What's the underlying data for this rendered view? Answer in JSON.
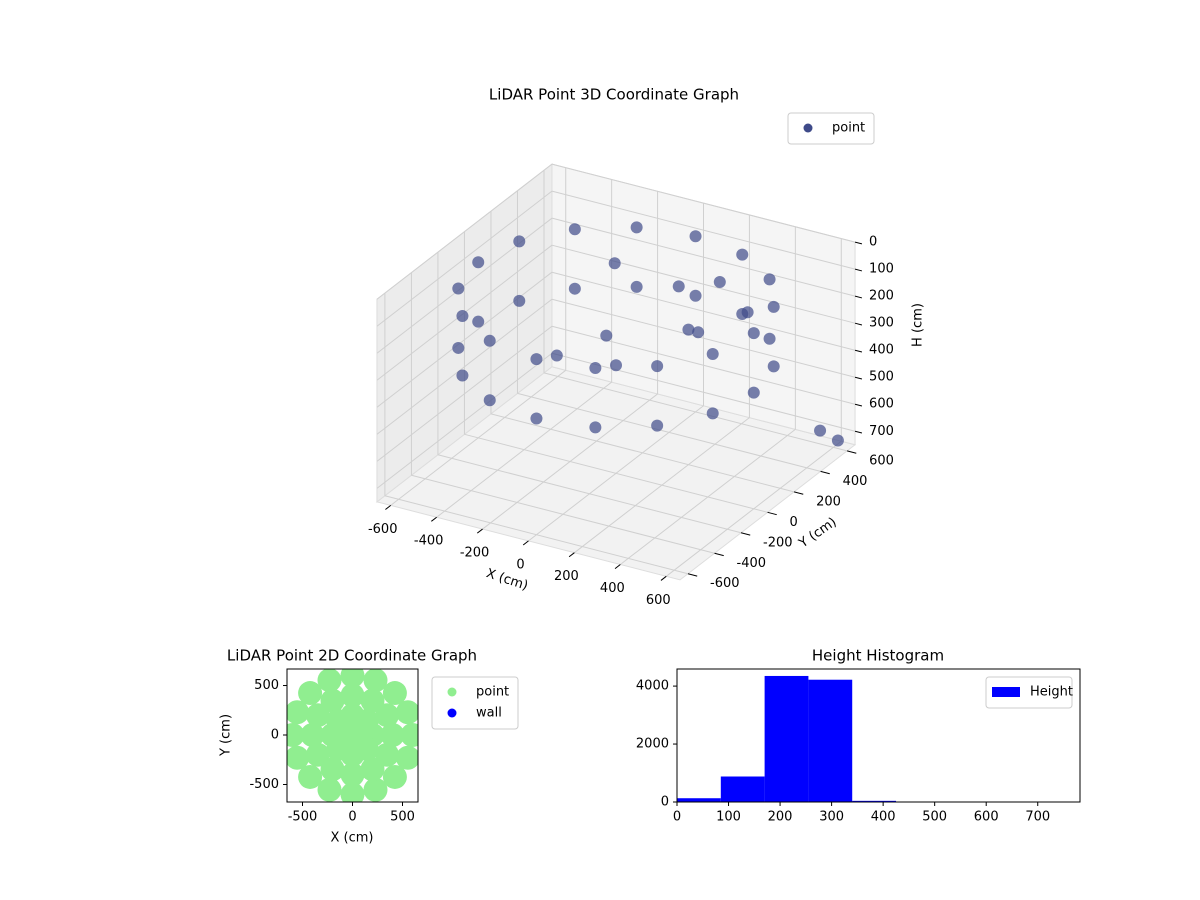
{
  "chart_data": [
    {
      "type": "scatter3d",
      "title": "LiDAR Point 3D Coordinate Graph",
      "x_label": "X (cm)",
      "y_label": "Y (cm)",
      "z_label": "H (cm)",
      "xlim": [
        -660,
        660
      ],
      "ylim": [
        -660,
        660
      ],
      "zlim": [
        0,
        750
      ],
      "z_inverted": true,
      "xticks": [
        -600,
        -400,
        -200,
        0,
        200,
        400,
        600
      ],
      "yticks": [
        -600,
        -400,
        -200,
        0,
        200,
        400,
        600
      ],
      "zticks": [
        0,
        100,
        200,
        300,
        400,
        500,
        600,
        700
      ],
      "grid": true,
      "legend": "upper right",
      "series": [
        {
          "name": "point",
          "color": "#3e4a89",
          "x": [
            600,
            554,
            424,
            230,
            0,
            -230,
            -424,
            -554,
            -600,
            -554,
            -424,
            -230,
            0,
            230,
            424,
            554,
            600,
            554,
            424,
            230,
            0,
            -230,
            -424,
            -554,
            -600,
            -554,
            -424,
            -230,
            0,
            230,
            424,
            554,
            0,
            -100,
            200,
            300,
            100,
            -200,
            250,
            -150,
            400,
            600,
            620
          ],
          "y": [
            0,
            230,
            424,
            554,
            600,
            554,
            424,
            230,
            0,
            -230,
            -424,
            -554,
            -600,
            -554,
            -424,
            -230,
            0,
            230,
            424,
            554,
            600,
            554,
            424,
            230,
            0,
            -230,
            -424,
            -554,
            -600,
            -554,
            -424,
            -230,
            0,
            100,
            200,
            100,
            300,
            -100,
            350,
            250,
            300,
            500,
            600
          ],
          "z": [
            100,
            100,
            100,
            100,
            100,
            100,
            100,
            100,
            100,
            100,
            100,
            100,
            100,
            100,
            100,
            100,
            320,
            320,
            320,
            320,
            320,
            320,
            320,
            320,
            320,
            320,
            320,
            320,
            320,
            320,
            320,
            320,
            350,
            300,
            250,
            200,
            150,
            320,
            120,
            100,
            180,
            650,
            720
          ]
        }
      ]
    },
    {
      "type": "scatter",
      "title": "LiDAR Point 2D Coordinate Graph",
      "x_label": "X (cm)",
      "y_label": "Y (cm)",
      "xlim": [
        -655,
        655
      ],
      "ylim": [
        -677,
        667
      ],
      "xticks": [
        -500,
        0,
        500
      ],
      "yticks": [
        -500,
        0,
        500
      ],
      "legend": "outside right",
      "series": [
        {
          "name": "point",
          "color": "#90ee90",
          "x": [
            600,
            554,
            424,
            230,
            0,
            -230,
            -424,
            -554,
            -600,
            -554,
            -424,
            -230,
            0,
            230,
            424,
            554,
            400,
            346,
            200,
            0,
            -200,
            -346,
            -400,
            -346,
            -200,
            0,
            200,
            346,
            200,
            141,
            0,
            -141,
            -200,
            -141,
            0,
            141,
            0
          ],
          "y": [
            0,
            230,
            424,
            554,
            600,
            554,
            424,
            230,
            0,
            -230,
            -424,
            -554,
            -600,
            -554,
            -424,
            -230,
            0,
            200,
            346,
            400,
            346,
            200,
            0,
            -200,
            -346,
            -400,
            -346,
            -200,
            0,
            141,
            200,
            141,
            0,
            -141,
            -200,
            -141,
            0
          ]
        },
        {
          "name": "wall",
          "color": "#0000ff",
          "x": [],
          "y": []
        }
      ]
    },
    {
      "type": "histogram",
      "title": "Height Histogram",
      "bins": [
        0,
        85,
        170,
        255,
        340,
        425,
        510,
        595,
        680,
        765
      ],
      "series": [
        {
          "name": "Height",
          "color": "#0000ff",
          "values": [
            130,
            880,
            4350,
            4220,
            40,
            10,
            5,
            3,
            2
          ]
        }
      ],
      "xlim": [
        0,
        782
      ],
      "ylim": [
        0,
        4590
      ],
      "xticks": [
        0,
        100,
        200,
        300,
        400,
        500,
        600,
        700
      ],
      "yticks": [
        0,
        2000,
        4000
      ],
      "legend": "upper right"
    }
  ]
}
